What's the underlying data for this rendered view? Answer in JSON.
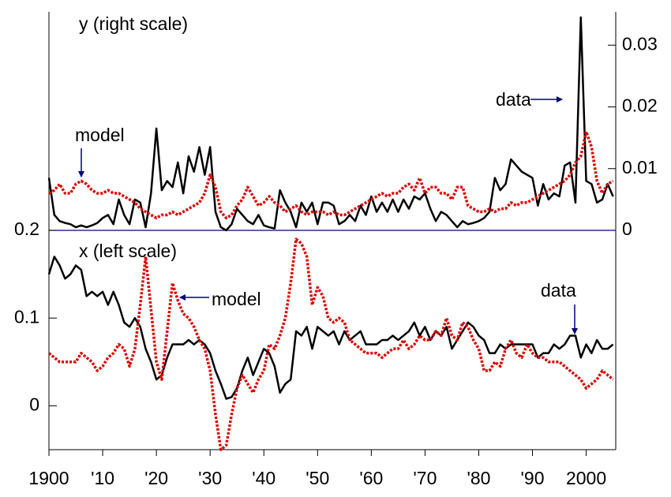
{
  "chart_data": [
    {
      "type": "line",
      "title": "y (right scale)",
      "axis_side": "right",
      "x": [
        1900,
        1901,
        1902,
        1903,
        1904,
        1905,
        1906,
        1907,
        1908,
        1909,
        1910,
        1911,
        1912,
        1913,
        1914,
        1915,
        1916,
        1917,
        1918,
        1919,
        1920,
        1921,
        1922,
        1923,
        1924,
        1925,
        1926,
        1927,
        1928,
        1929,
        1930,
        1931,
        1932,
        1933,
        1934,
        1935,
        1936,
        1937,
        1938,
        1939,
        1940,
        1941,
        1942,
        1943,
        1944,
        1945,
        1946,
        1947,
        1948,
        1949,
        1950,
        1951,
        1952,
        1953,
        1954,
        1955,
        1956,
        1957,
        1958,
        1959,
        1960,
        1961,
        1962,
        1963,
        1964,
        1965,
        1966,
        1967,
        1968,
        1969,
        1970,
        1971,
        1972,
        1973,
        1974,
        1975,
        1976,
        1977,
        1978,
        1979,
        1980,
        1981,
        1982,
        1983,
        1984,
        1985,
        1986,
        1987,
        1988,
        1989,
        1990,
        1991,
        1992,
        1993,
        1994,
        1995,
        1996,
        1997,
        1998,
        1999,
        2000,
        2001,
        2002,
        2003,
        2004,
        2005
      ],
      "xlim": [
        1900,
        2005.5
      ],
      "ylim": [
        0,
        0.0354
      ],
      "yticks": [
        0,
        0.01,
        0.02,
        0.03
      ],
      "series": [
        {
          "name": "data",
          "color": "#000000",
          "dashed": false,
          "values": [
            0.0085,
            0.0025,
            0.0015,
            0.0012,
            0.001,
            0.0005,
            0.0008,
            0.0005,
            0.0008,
            0.0012,
            0.002,
            0.0025,
            0.001,
            0.005,
            0.0025,
            0.001,
            0.005,
            0.0045,
            0.0005,
            0.006,
            0.0165,
            0.0065,
            0.008,
            0.007,
            0.011,
            0.006,
            0.012,
            0.0095,
            0.0135,
            0.009,
            0.0135,
            0.003,
            0.0005,
            0,
            0.001,
            0.0035,
            0.0025,
            0.0015,
            0.001,
            0.0025,
            0.0008,
            0.0005,
            0.0003,
            0.0065,
            0.0045,
            0.003,
            0.0005,
            0.0045,
            0.003,
            0.0045,
            0.001,
            0.0045,
            0.0045,
            0.004,
            0.001,
            0.0015,
            0.0025,
            0.0015,
            0.004,
            0.0025,
            0.0055,
            0.003,
            0.0045,
            0.003,
            0.005,
            0.003,
            0.005,
            0.0035,
            0.0055,
            0.005,
            0.006,
            0.0035,
            0.0015,
            0.003,
            0.0025,
            0.0015,
            0.0005,
            0.0015,
            0.001,
            0.0012,
            0.0015,
            0.002,
            0.003,
            0.0085,
            0.0065,
            0.0075,
            0.0115,
            0.0105,
            0.0095,
            0.009,
            0.0085,
            0.004,
            0.0075,
            0.005,
            0.006,
            0.0055,
            0.0105,
            0.011,
            0.0045,
            0.0345,
            0.008,
            0.0075,
            0.0045,
            0.005,
            0.0075,
            0.0055
          ]
        },
        {
          "name": "model",
          "color": "#e00000",
          "dashed": true,
          "values": [
            0.006,
            0.0065,
            0.0075,
            0.006,
            0.006,
            0.0075,
            0.008,
            0.0075,
            0.0065,
            0.006,
            0.006,
            0.0065,
            0.006,
            0.006,
            0.0055,
            0.005,
            0.0045,
            0.0035,
            0.003,
            0.0025,
            0.002,
            0.0025,
            0.0025,
            0.003,
            0.0025,
            0.003,
            0.0035,
            0.004,
            0.0045,
            0.006,
            0.009,
            0.007,
            0.003,
            0.002,
            0.0025,
            0.004,
            0.005,
            0.007,
            0.0055,
            0.004,
            0.0045,
            0.0055,
            0.0045,
            0.004,
            0.003,
            0.0035,
            0.004,
            0.003,
            0.0025,
            0.003,
            0.003,
            0.003,
            0.0025,
            0.003,
            0.0025,
            0.0025,
            0.003,
            0.0035,
            0.004,
            0.0045,
            0.005,
            0.0055,
            0.006,
            0.0055,
            0.006,
            0.006,
            0.007,
            0.0075,
            0.0065,
            0.0085,
            0.006,
            0.007,
            0.007,
            0.006,
            0.006,
            0.005,
            0.007,
            0.007,
            0.004,
            0.0035,
            0.003,
            0.003,
            0.0035,
            0.003,
            0.0035,
            0.0035,
            0.0045,
            0.004,
            0.0045,
            0.0045,
            0.005,
            0.0055,
            0.006,
            0.0065,
            0.007,
            0.0075,
            0.008,
            0.009,
            0.011,
            0.012,
            0.016,
            0.0135,
            0.008,
            0.006,
            0.0075,
            0.008
          ]
        }
      ]
    },
    {
      "type": "line",
      "title": "x (left scale)",
      "axis_side": "left",
      "x": [
        1900,
        1901,
        1902,
        1903,
        1904,
        1905,
        1906,
        1907,
        1908,
        1909,
        1910,
        1911,
        1912,
        1913,
        1914,
        1915,
        1916,
        1917,
        1918,
        1919,
        1920,
        1921,
        1922,
        1923,
        1924,
        1925,
        1926,
        1927,
        1928,
        1929,
        1930,
        1931,
        1932,
        1933,
        1934,
        1935,
        1936,
        1937,
        1938,
        1939,
        1940,
        1941,
        1942,
        1943,
        1944,
        1945,
        1946,
        1947,
        1948,
        1949,
        1950,
        1951,
        1952,
        1953,
        1954,
        1955,
        1956,
        1957,
        1958,
        1959,
        1960,
        1961,
        1962,
        1963,
        1964,
        1965,
        1966,
        1967,
        1968,
        1969,
        1970,
        1971,
        1972,
        1973,
        1974,
        1975,
        1976,
        1977,
        1978,
        1979,
        1980,
        1981,
        1982,
        1983,
        1984,
        1985,
        1986,
        1987,
        1988,
        1989,
        1990,
        1991,
        1992,
        1993,
        1994,
        1995,
        1996,
        1997,
        1998,
        1999,
        2000,
        2001,
        2002,
        2003,
        2004,
        2005
      ],
      "xlim": [
        1900,
        2005.5
      ],
      "xticks": [
        1900,
        {
          "value": 1910,
          "label": "'10"
        },
        {
          "value": 1920,
          "label": "'20"
        },
        {
          "value": 1930,
          "label": "'30"
        },
        {
          "value": 1940,
          "label": "'40"
        },
        {
          "value": 1950,
          "label": "'50"
        },
        {
          "value": 1960,
          "label": "'60"
        },
        {
          "value": 1970,
          "label": "'70"
        },
        {
          "value": 1980,
          "label": "'80"
        },
        {
          "value": 1990,
          "label": "'90"
        },
        2000
      ],
      "ylim": [
        -0.05,
        0.2
      ],
      "yticks": [
        0,
        0.1,
        0.2
      ],
      "series": [
        {
          "name": "data",
          "color": "#000000",
          "dashed": false,
          "values": [
            0.15,
            0.17,
            0.16,
            0.145,
            0.15,
            0.16,
            0.155,
            0.125,
            0.13,
            0.125,
            0.13,
            0.115,
            0.13,
            0.115,
            0.095,
            0.09,
            0.1,
            0.09,
            0.065,
            0.05,
            0.03,
            0.035,
            0.055,
            0.07,
            0.07,
            0.07,
            0.075,
            0.07,
            0.075,
            0.07,
            0.06,
            0.04,
            0.025,
            0.008,
            0.01,
            0.02,
            0.04,
            0.055,
            0.035,
            0.05,
            0.065,
            0.06,
            0.045,
            0.015,
            0.025,
            0.03,
            0.085,
            0.08,
            0.09,
            0.065,
            0.09,
            0.085,
            0.08,
            0.085,
            0.07,
            0.085,
            0.075,
            0.08,
            0.085,
            0.07,
            0.07,
            0.07,
            0.075,
            0.075,
            0.08,
            0.075,
            0.08,
            0.085,
            0.095,
            0.08,
            0.09,
            0.075,
            0.085,
            0.08,
            0.09,
            0.065,
            0.075,
            0.085,
            0.095,
            0.09,
            0.08,
            0.075,
            0.06,
            0.06,
            0.07,
            0.065,
            0.07,
            0.07,
            0.07,
            0.07,
            0.07,
            0.055,
            0.06,
            0.06,
            0.07,
            0.065,
            0.07,
            0.08,
            0.08,
            0.055,
            0.07,
            0.06,
            0.075,
            0.065,
            0.065,
            0.07
          ]
        },
        {
          "name": "model",
          "color": "#e00000",
          "dashed": true,
          "values": [
            0.06,
            0.055,
            0.05,
            0.05,
            0.05,
            0.05,
            0.06,
            0.055,
            0.05,
            0.04,
            0.045,
            0.055,
            0.06,
            0.07,
            0.065,
            0.045,
            0.065,
            0.115,
            0.17,
            0.11,
            0.05,
            0.03,
            0.085,
            0.14,
            0.12,
            0.105,
            0.1,
            0.09,
            0.075,
            0.065,
            0.04,
            -0.01,
            -0.05,
            -0.045,
            -0.01,
            0.02,
            0.035,
            0.025,
            0.015,
            0.03,
            0.04,
            0.07,
            0.065,
            0.08,
            0.1,
            0.14,
            0.19,
            0.185,
            0.17,
            0.115,
            0.135,
            0.125,
            0.1,
            0.095,
            0.1,
            0.095,
            0.075,
            0.07,
            0.065,
            0.06,
            0.06,
            0.06,
            0.055,
            0.06,
            0.065,
            0.065,
            0.075,
            0.065,
            0.07,
            0.08,
            0.075,
            0.075,
            0.085,
            0.08,
            0.1,
            0.08,
            0.075,
            0.095,
            0.09,
            0.075,
            0.065,
            0.04,
            0.04,
            0.05,
            0.045,
            0.065,
            0.075,
            0.06,
            0.055,
            0.07,
            0.06,
            0.055,
            0.055,
            0.05,
            0.05,
            0.05,
            0.045,
            0.04,
            0.035,
            0.03,
            0.02,
            0.025,
            0.03,
            0.04,
            0.035,
            0.03
          ]
        }
      ]
    }
  ]
}
